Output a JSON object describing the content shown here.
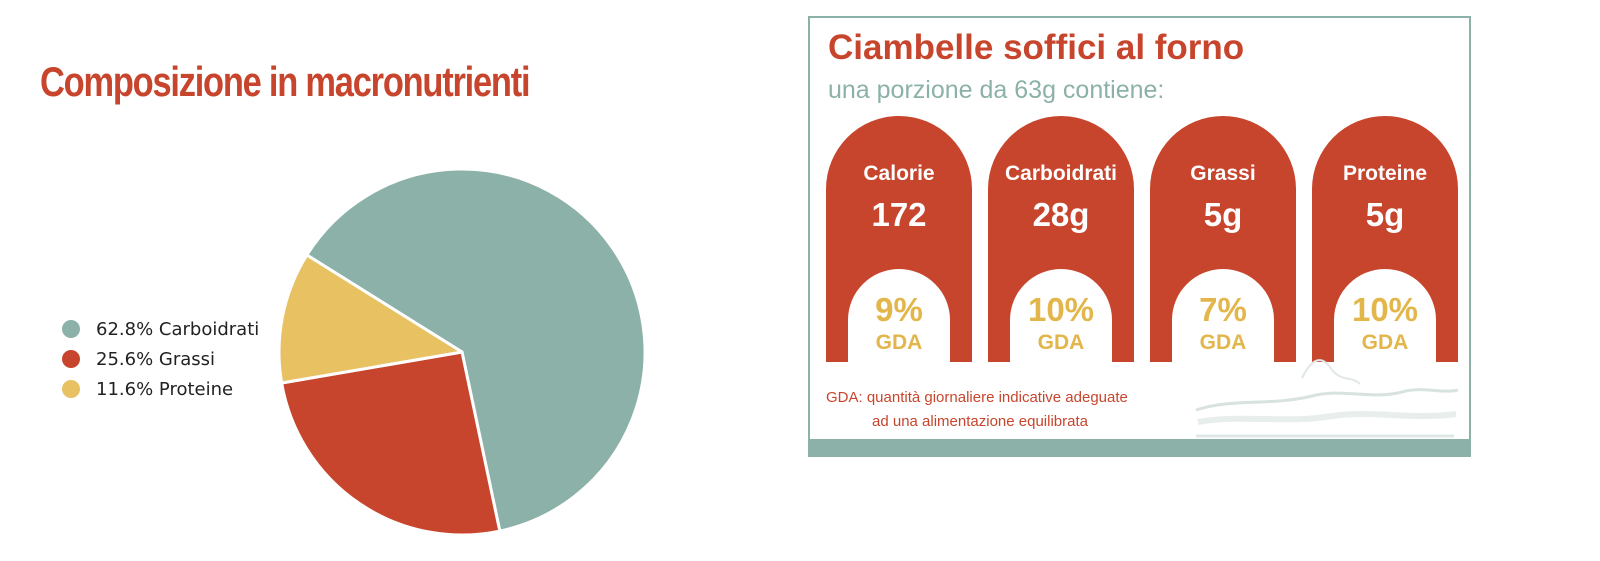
{
  "chart_data": [
    {
      "type": "pie",
      "title": "Composizione in macronutrienti",
      "slices": [
        {
          "label": "62.8% Carboidrati",
          "value": 62.8,
          "color": "#8cb1a9"
        },
        {
          "label": "25.6% Grassi",
          "value": 25.6,
          "color": "#c8452d"
        },
        {
          "label": "11.6% Proteine",
          "value": 11.6,
          "color": "#e8c162"
        }
      ],
      "legend_position": "left"
    }
  ],
  "label": {
    "title": "Ciambelle soffici al forno",
    "subtitle": "una porzione da 63g contiene:",
    "items": [
      {
        "name": "Calorie",
        "value": "172",
        "pct": "9%",
        "gda": "GDA"
      },
      {
        "name": "Carboidrati",
        "value": "28g",
        "pct": "10%",
        "gda": "GDA"
      },
      {
        "name": "Grassi",
        "value": "5g",
        "pct": "7%",
        "gda": "GDA"
      },
      {
        "name": "Proteine",
        "value": "5g",
        "pct": "10%",
        "gda": "GDA"
      }
    ],
    "note_line1": "GDA: quantità giornaliere indicative adeguate",
    "note_line2": "ad una alimentazione equilibrata"
  },
  "colors": {
    "accent": "#c8452d",
    "teal": "#8cb1a9",
    "yellow": "#e8c162",
    "gda_text": "#e2b64a"
  }
}
